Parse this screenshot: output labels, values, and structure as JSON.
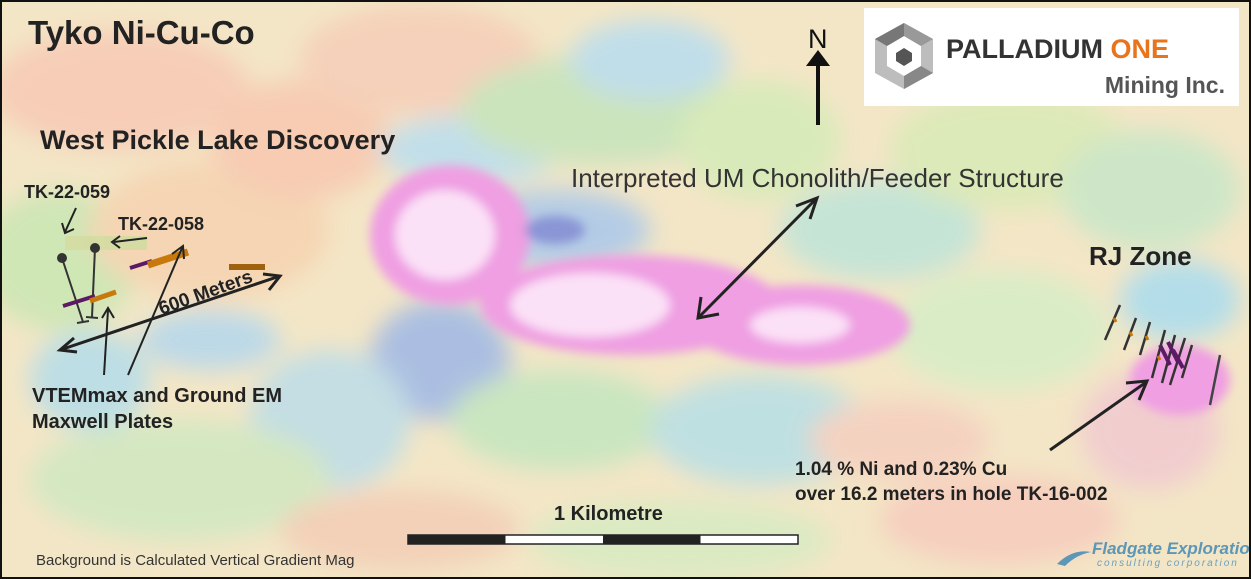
{
  "map": {
    "title": "Tyko Ni-Cu-Co",
    "area_label": "West Pickle Lake Discovery",
    "structure_label": "Interpreted UM Chonolith/Feeder Structure",
    "zone_label": "RJ Zone",
    "north_label": "N",
    "holes": [
      "TK-22-059",
      "TK-22-058"
    ],
    "distance_label": "600 Meters",
    "plates_label": [
      "VTEMmax and Ground EM",
      "Maxwell Plates"
    ],
    "intercept_label": [
      "1.04 % Ni and 0.23% Cu",
      "over 16.2 meters in hole TK-16-002"
    ],
    "scale_bar_label": "1 Kilometre",
    "background_note": "Background is Calculated Vertical Gradient Mag"
  },
  "logo": {
    "company_part1": "PALLADIUM",
    "company_part2": "ONE",
    "company_line2": "Mining Inc.",
    "accent_color": "#e8741c"
  },
  "credit": {
    "name": "Fladgate Exploration",
    "subtitle": "consulting corporation",
    "color": "#5c97b8"
  },
  "colors": {
    "plate_orange": "#c7790c",
    "plate_purple": "#5b1a63",
    "high_mag": "#f7d6f1",
    "low_mag": "#9fb4e3"
  }
}
